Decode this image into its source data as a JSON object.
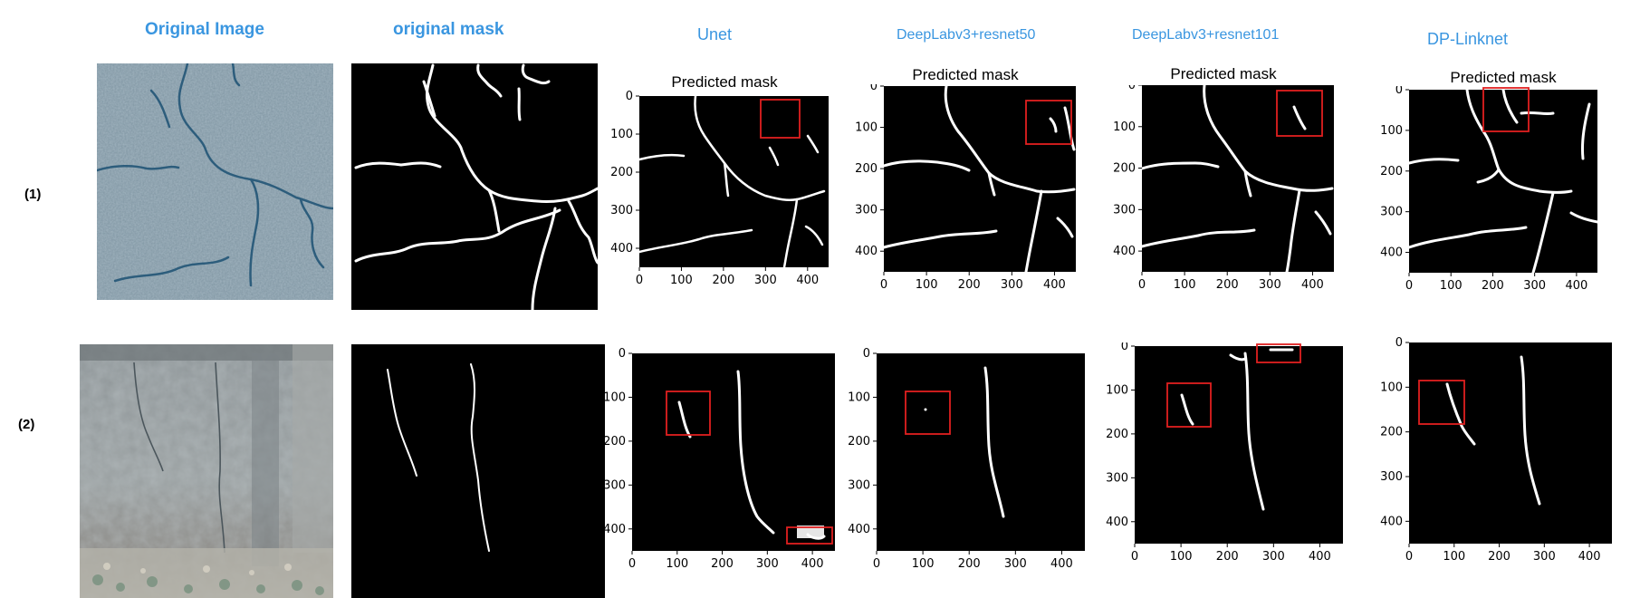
{
  "columns": {
    "original_image": "Original  Image",
    "original_mask": "original mask",
    "unet": "Unet",
    "dl50": "DeepLabv3+resnet50",
    "dl101": "DeepLabv3+resnet101",
    "dplink": "DP-Linknet"
  },
  "rows": [
    "(1)",
    "(2)"
  ],
  "plot_title": "Predicted mask",
  "ticks": {
    "x": [
      "0",
      "100",
      "200",
      "300",
      "400"
    ],
    "y": [
      "0",
      "100",
      "200",
      "300",
      "400"
    ]
  },
  "colors": {
    "header": "#3a96e0",
    "highlight": "#e02020",
    "crack": "#ffffff",
    "mask_bg": "#000000"
  }
}
